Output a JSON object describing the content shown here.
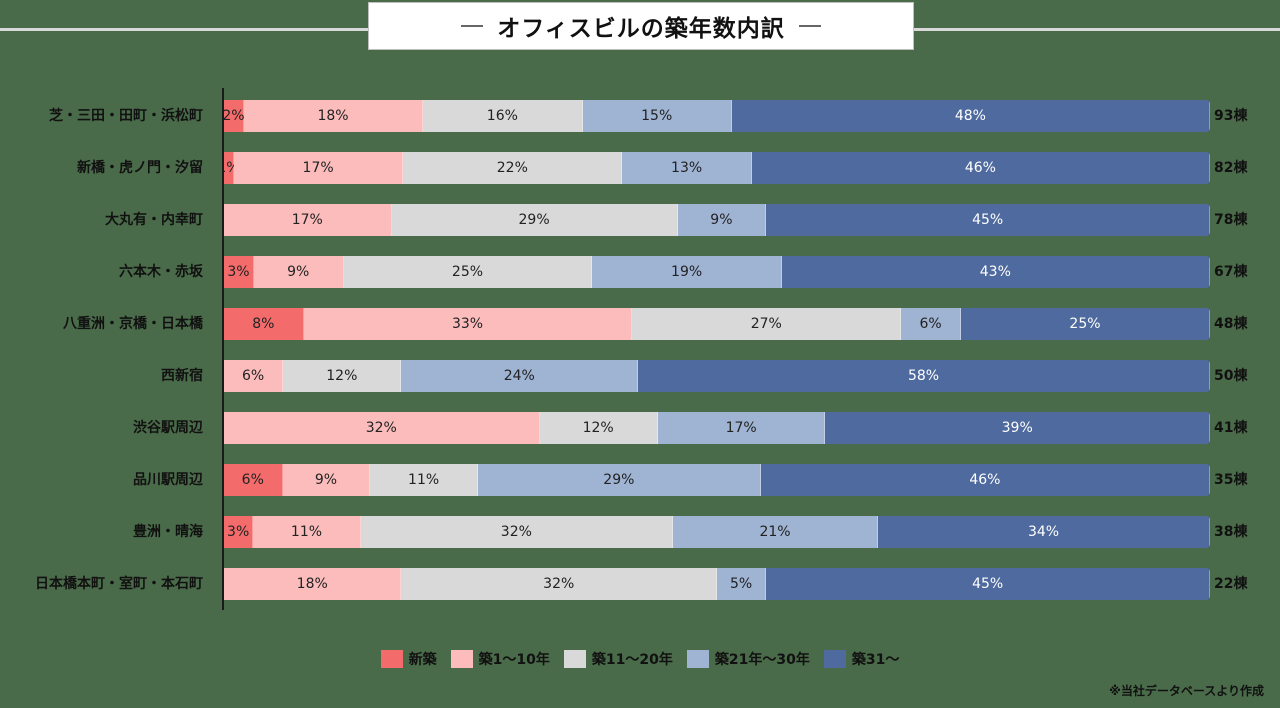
{
  "title": "オフィスビルの築年数内訳",
  "source_note": "※当社データベースより作成",
  "chart_data": {
    "type": "bar",
    "orientation": "horizontal",
    "stacked": true,
    "normalized": true,
    "title": "オフィスビルの築年数内訳",
    "legend_position": "bottom",
    "categories": [
      "芝・三田・田町・浜松町",
      "新橋・虎ノ門・汐留",
      "大丸有・内幸町",
      "六本木・赤坂",
      "八重洲・京橋・日本橋",
      "西新宿",
      "渋谷駅周辺",
      "品川駅周辺",
      "豊洲・晴海",
      "日本橋本町・室町・本石町"
    ],
    "totals": [
      "93棟",
      "82棟",
      "78棟",
      "67棟",
      "48棟",
      "50棟",
      "41棟",
      "35棟",
      "38棟",
      "22棟"
    ],
    "series": [
      {
        "name": "新築",
        "color": "#f46b6b",
        "text_color": "#222222",
        "values": [
          2,
          1,
          0,
          3,
          8,
          0,
          0,
          6,
          3,
          0
        ]
      },
      {
        "name": "築1〜10年",
        "color": "#fcbcbc",
        "text_color": "#222222",
        "values": [
          18,
          17,
          17,
          9,
          33,
          6,
          32,
          9,
          11,
          18
        ]
      },
      {
        "name": "築11〜20年",
        "color": "#d9d9d9",
        "text_color": "#222222",
        "values": [
          16,
          22,
          29,
          25,
          27,
          12,
          12,
          11,
          32,
          32
        ]
      },
      {
        "name": "築21年〜30年",
        "color": "#9fb3d3",
        "text_color": "#222222",
        "values": [
          15,
          13,
          9,
          19,
          6,
          24,
          17,
          29,
          21,
          5
        ]
      },
      {
        "name": "築31〜",
        "color": "#4e6a9e",
        "text_color": "#ffffff",
        "values": [
          48,
          46,
          45,
          43,
          25,
          58,
          39,
          46,
          34,
          45
        ]
      }
    ]
  }
}
